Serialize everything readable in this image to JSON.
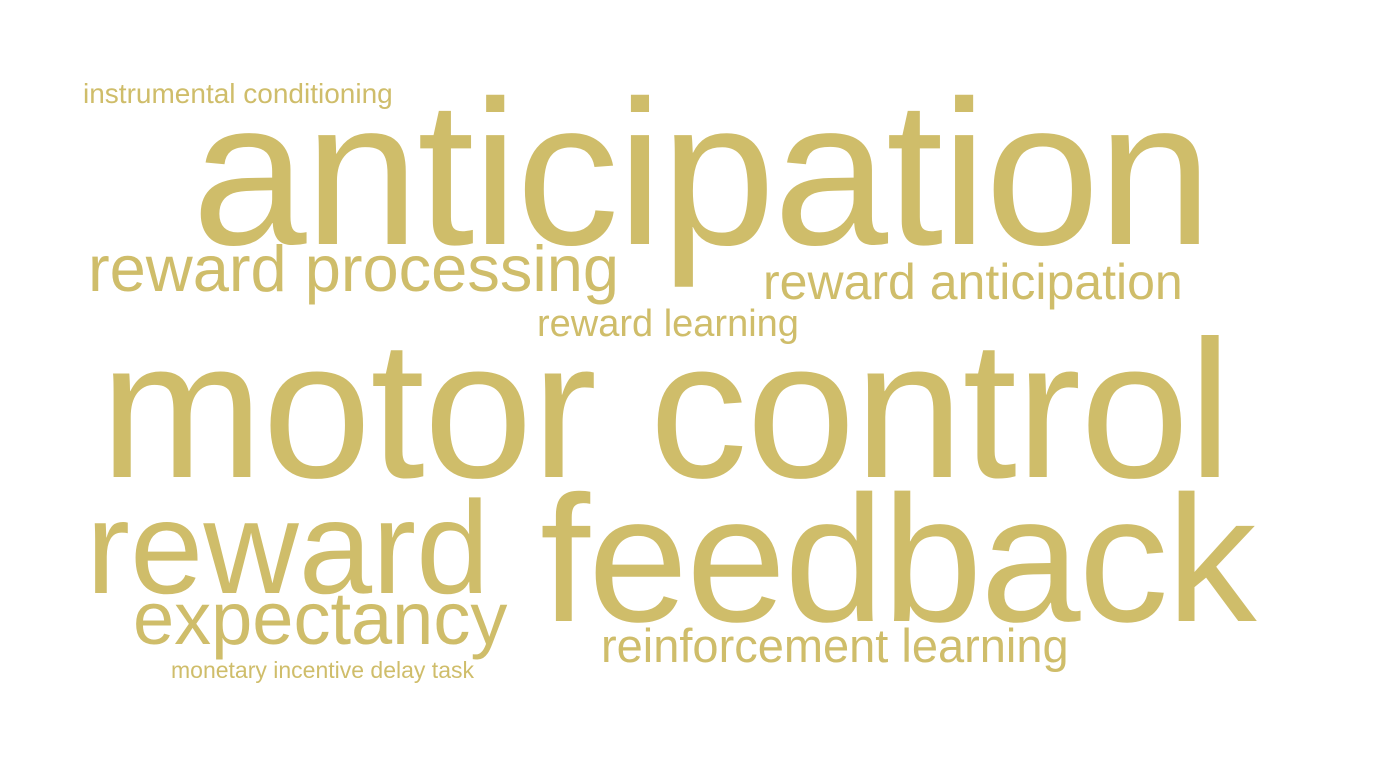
{
  "word_cloud": {
    "color": "#cfbd6a",
    "background": "#ffffff",
    "words": {
      "instrumental_conditioning": "instrumental conditioning",
      "anticipation": "anticipation",
      "reward_processing": "reward processing",
      "reward_anticipation": "reward anticipation",
      "reward_learning": "reward learning",
      "motor_control": "motor control",
      "reward": "reward",
      "feedback": "feedback",
      "expectancy": "expectancy",
      "reinforcement_learning": "reinforcement learning",
      "monetary_incentive_delay_task": "monetary incentive delay task"
    }
  }
}
